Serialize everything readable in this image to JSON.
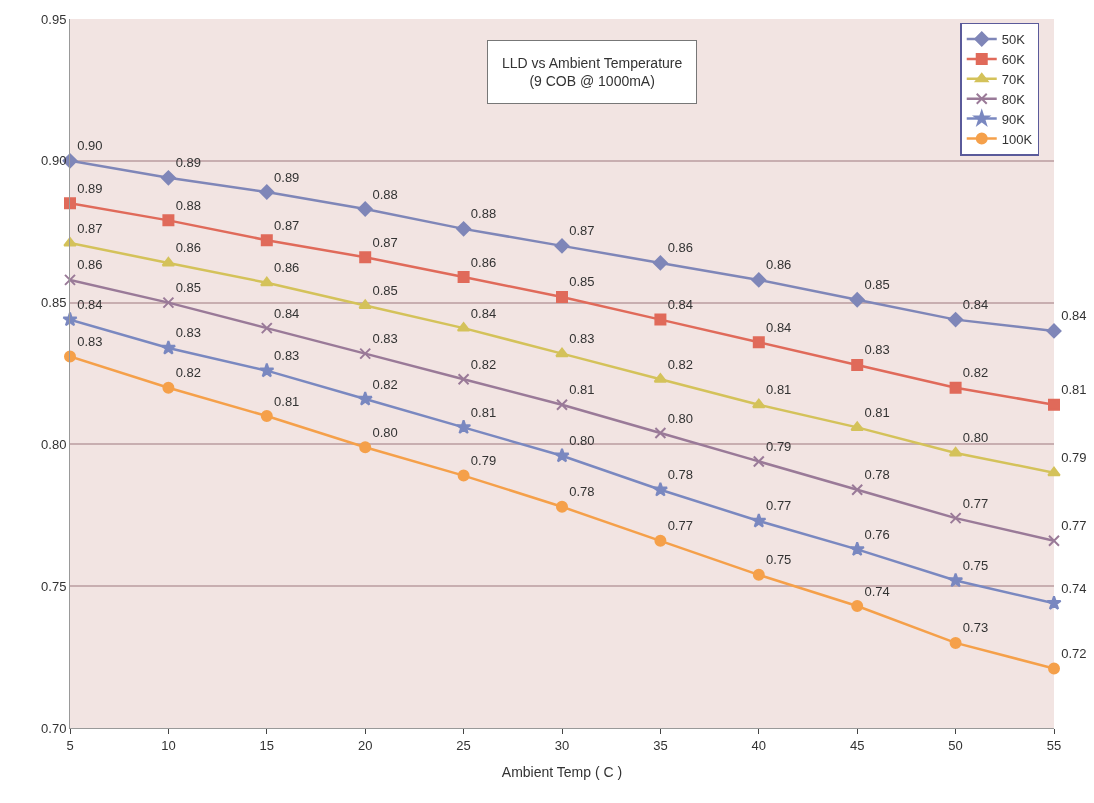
{
  "chart_data": {
    "type": "line",
    "title": "LLD vs Ambient Temperature\n(9 COB @ 1000mA)",
    "xlabel": "Ambient Temp ( C )",
    "x": [
      5,
      10,
      15,
      20,
      25,
      30,
      35,
      40,
      45,
      50,
      55
    ],
    "xlim": [
      5,
      55
    ],
    "xticks": [
      5,
      10,
      15,
      20,
      25,
      30,
      35,
      40,
      45,
      50,
      55
    ],
    "ylim": [
      0.7,
      0.95
    ],
    "yticks": [
      {
        "value": 0.7,
        "label": "0.70"
      },
      {
        "value": 0.75,
        "label": "0.75"
      },
      {
        "value": 0.8,
        "label": "0.80"
      },
      {
        "value": 0.85,
        "label": "0.85"
      },
      {
        "value": 0.9,
        "label": "0.90"
      },
      {
        "value": 0.95,
        "label": "0.95"
      }
    ],
    "grid": "y",
    "legend": "top right",
    "line_style": "solid",
    "series": [
      {
        "name": "50K",
        "color": "#7f86b8",
        "marker": "diamond",
        "values": [
          0.9,
          0.894,
          0.889,
          0.883,
          0.876,
          0.87,
          0.864,
          0.858,
          0.851,
          0.844,
          0.84
        ],
        "value_labels": [
          "0.90",
          "0.89",
          "0.89",
          "0.88",
          "0.88",
          "0.87",
          "0.86",
          "0.86",
          "0.85",
          "0.84",
          "0.84"
        ]
      },
      {
        "name": "60K",
        "color": "#e06a5a",
        "marker": "square",
        "values": [
          0.885,
          0.879,
          0.872,
          0.866,
          0.859,
          0.852,
          0.844,
          0.836,
          0.828,
          0.82,
          0.814
        ],
        "value_labels": [
          "0.89",
          "0.88",
          "0.87",
          "0.87",
          "0.86",
          "0.85",
          "0.84",
          "0.84",
          "0.83",
          "0.82",
          "0.81"
        ]
      },
      {
        "name": "70K",
        "color": "#d4c25a",
        "marker": "triangle",
        "values": [
          0.871,
          0.864,
          0.857,
          0.849,
          0.841,
          0.832,
          0.823,
          0.814,
          0.806,
          0.797,
          0.79
        ],
        "value_labels": [
          "0.87",
          "0.86",
          "0.86",
          "0.85",
          "0.84",
          "0.83",
          "0.82",
          "0.81",
          "0.81",
          "0.80",
          "0.79"
        ]
      },
      {
        "name": "80K",
        "color": "#9a7a98",
        "marker": "cross",
        "values": [
          0.858,
          0.85,
          0.841,
          0.832,
          0.823,
          0.814,
          0.804,
          0.794,
          0.784,
          0.774,
          0.766
        ],
        "value_labels": [
          "0.86",
          "0.85",
          "0.84",
          "0.83",
          "0.82",
          "0.81",
          "0.80",
          "0.79",
          "0.78",
          "0.77",
          "0.77"
        ]
      },
      {
        "name": "90K",
        "color": "#7a88c0",
        "marker": "star",
        "values": [
          0.844,
          0.834,
          0.826,
          0.816,
          0.806,
          0.796,
          0.784,
          0.773,
          0.763,
          0.752,
          0.744
        ],
        "value_labels": [
          "0.84",
          "0.83",
          "0.83",
          "0.82",
          "0.81",
          "0.80",
          "0.78",
          "0.77",
          "0.76",
          "0.75",
          "0.74"
        ]
      },
      {
        "name": "100K",
        "color": "#f5a04a",
        "marker": "circle",
        "values": [
          0.831,
          0.82,
          0.81,
          0.799,
          0.789,
          0.778,
          0.766,
          0.754,
          0.743,
          0.73,
          0.721
        ],
        "value_labels": [
          "0.83",
          "0.82",
          "0.81",
          "0.80",
          "0.79",
          "0.78",
          "0.77",
          "0.75",
          "0.74",
          "0.73",
          "0.72"
        ]
      }
    ]
  }
}
